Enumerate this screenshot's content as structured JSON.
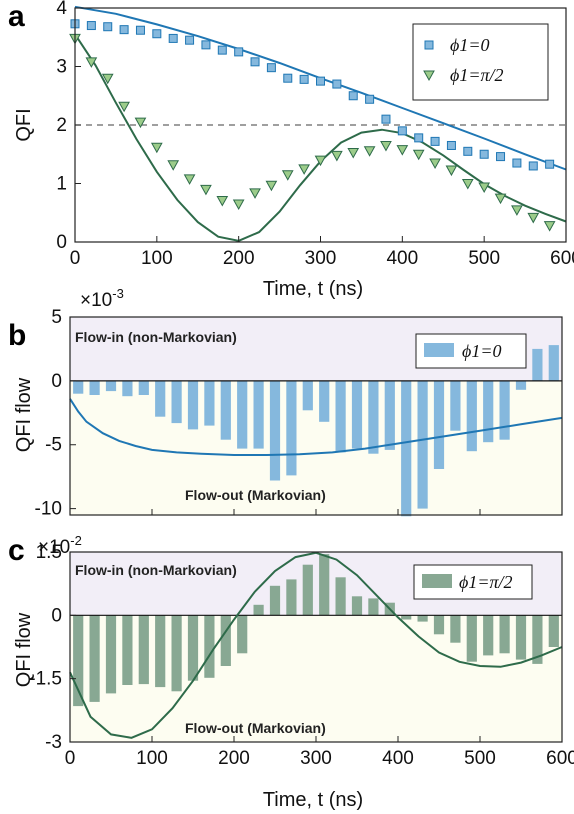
{
  "panels": [
    {
      "label": "a"
    },
    {
      "label": "b",
      "exponent_base": "×10",
      "exponent_power": "-3",
      "flow_in": "Flow-in (non-Markovian)",
      "flow_out": "Flow-out (Markovian)"
    },
    {
      "label": "c",
      "exponent_base": "×10",
      "exponent_power": "-2",
      "flow_in": "Flow-in (non-Markovian)",
      "flow_out": "Flow-out (Markovian)"
    }
  ],
  "colors": {
    "blue": "#1f77b4",
    "blue_fill": "#85b8dd",
    "green": "#2e6b4a",
    "green_fill": "#88a893",
    "green_marker": "#9ccc8a",
    "purple_bg": "#f2eef7",
    "yellow_bg": "#fdfdf1"
  },
  "chart_data": [
    {
      "type": "scatter",
      "title": "",
      "xlabel": "Time, t (ns)",
      "ylabel": "QFI",
      "xlim": [
        0,
        600
      ],
      "ylim": [
        0,
        4
      ],
      "xticks": [
        "0",
        "100",
        "200",
        "300",
        "400",
        "500",
        "600"
      ],
      "yticks": [
        "0",
        "1",
        "2",
        "3",
        "4"
      ],
      "reference_line": 2,
      "legend_position": "top-right",
      "series": [
        {
          "name": "ϕ1=0",
          "marker": "square",
          "x": [
            0,
            20,
            40,
            60,
            80,
            100,
            120,
            140,
            160,
            180,
            200,
            220,
            240,
            260,
            280,
            300,
            320,
            340,
            360,
            380,
            400,
            420,
            440,
            460,
            480,
            500,
            520,
            540,
            560,
            580
          ],
          "y": [
            3.73,
            3.7,
            3.68,
            3.63,
            3.62,
            3.56,
            3.48,
            3.45,
            3.37,
            3.28,
            3.25,
            3.08,
            2.98,
            2.8,
            2.78,
            2.75,
            2.7,
            2.5,
            2.44,
            2.1,
            1.9,
            1.78,
            1.72,
            1.65,
            1.55,
            1.5,
            1.46,
            1.35,
            1.3,
            1.33
          ]
        },
        {
          "name": "ϕ1=π/2",
          "marker": "triangle-down",
          "x": [
            0,
            20,
            40,
            60,
            80,
            100,
            120,
            140,
            160,
            180,
            200,
            220,
            240,
            260,
            280,
            300,
            320,
            340,
            360,
            380,
            400,
            420,
            440,
            460,
            480,
            500,
            520,
            540,
            560,
            580
          ],
          "y": [
            3.48,
            3.08,
            2.8,
            2.32,
            2.05,
            1.62,
            1.32,
            1.08,
            0.9,
            0.71,
            0.65,
            0.84,
            0.97,
            1.15,
            1.25,
            1.4,
            1.48,
            1.53,
            1.56,
            1.65,
            1.58,
            1.5,
            1.35,
            1.23,
            1.0,
            0.94,
            0.75,
            0.55,
            0.42,
            0.28
          ]
        },
        {
          "name": "fit ϕ1=0",
          "type": "line",
          "x": [
            0,
            50,
            100,
            150,
            200,
            250,
            300,
            350,
            400,
            450,
            500,
            550,
            600
          ],
          "y": [
            4.02,
            3.9,
            3.72,
            3.52,
            3.3,
            3.06,
            2.8,
            2.55,
            2.29,
            2.03,
            1.77,
            1.5,
            1.24
          ]
        },
        {
          "name": "fit ϕ1=π/2",
          "type": "line",
          "x": [
            0,
            25,
            50,
            75,
            100,
            125,
            150,
            175,
            200,
            225,
            250,
            275,
            300,
            325,
            350,
            375,
            400,
            425,
            450,
            475,
            500,
            525,
            550,
            575,
            600
          ],
          "y": [
            3.55,
            3.02,
            2.38,
            1.76,
            1.2,
            0.72,
            0.34,
            0.09,
            0.02,
            0.17,
            0.52,
            0.97,
            1.38,
            1.7,
            1.87,
            1.92,
            1.86,
            1.7,
            1.48,
            1.23,
            0.99,
            0.79,
            0.62,
            0.48,
            0.35
          ]
        }
      ]
    },
    {
      "type": "bar",
      "title": "",
      "ylabel": "QFI flow",
      "xlim": [
        0,
        600
      ],
      "ylim": [
        -10.5,
        5
      ],
      "yticks": [
        "-10",
        "-5",
        "0",
        "5"
      ],
      "legend_position": "top-right",
      "series": [
        {
          "name": "ϕ1=0",
          "x": [
            10,
            30,
            50,
            70,
            90,
            110,
            130,
            150,
            170,
            190,
            210,
            230,
            250,
            270,
            290,
            310,
            330,
            350,
            370,
            390,
            410,
            430,
            450,
            470,
            490,
            510,
            530,
            550,
            570,
            590
          ],
          "values": [
            -1.0,
            -1.1,
            -0.8,
            -1.2,
            -1.1,
            -2.8,
            -3.3,
            -3.8,
            -3.5,
            -4.6,
            -5.3,
            -5.3,
            -7.8,
            -7.4,
            -2.3,
            -3.2,
            -5.6,
            -5.3,
            -5.7,
            -5.4,
            -10.6,
            -10.0,
            -6.9,
            -3.9,
            -5.5,
            -4.8,
            -4.6,
            -0.7,
            2.5,
            2.8
          ]
        },
        {
          "name": "fit",
          "type": "line",
          "x": [
            0,
            10,
            20,
            40,
            60,
            80,
            100,
            130,
            160,
            200,
            240,
            280,
            320,
            360,
            400,
            450,
            500,
            550,
            600
          ],
          "y": [
            -1.4,
            -2.4,
            -3.2,
            -4.1,
            -4.7,
            -5.1,
            -5.4,
            -5.6,
            -5.7,
            -5.8,
            -5.8,
            -5.75,
            -5.6,
            -5.3,
            -4.9,
            -4.4,
            -3.9,
            -3.4,
            -2.9
          ]
        }
      ]
    },
    {
      "type": "bar",
      "title": "",
      "xlabel": "Time, t (ns)",
      "ylabel": "QFI flow",
      "xlim": [
        0,
        600
      ],
      "ylim": [
        -3,
        1.5
      ],
      "xticks": [
        "0",
        "100",
        "200",
        "300",
        "400",
        "500",
        "600"
      ],
      "yticks": [
        "-3",
        "-1.5",
        "0",
        "1.5"
      ],
      "legend_position": "top-right",
      "series": [
        {
          "name": "ϕ1=π/2",
          "x": [
            10,
            30,
            50,
            70,
            90,
            110,
            130,
            150,
            170,
            190,
            210,
            230,
            250,
            270,
            290,
            310,
            330,
            350,
            370,
            390,
            410,
            430,
            450,
            470,
            490,
            510,
            530,
            550,
            570,
            590
          ],
          "values": [
            -2.15,
            -2.05,
            -1.85,
            -1.65,
            -1.63,
            -1.7,
            -1.8,
            -1.55,
            -1.48,
            -1.2,
            -0.9,
            0.25,
            0.7,
            0.85,
            1.2,
            1.45,
            0.9,
            0.45,
            0.4,
            0.3,
            -0.1,
            -0.15,
            -0.45,
            -0.65,
            -1.1,
            -0.95,
            -0.9,
            -1.05,
            -1.15,
            -0.75
          ]
        },
        {
          "name": "fit",
          "type": "line",
          "x": [
            0,
            25,
            50,
            75,
            100,
            125,
            150,
            175,
            200,
            225,
            250,
            275,
            300,
            325,
            350,
            375,
            400,
            425,
            450,
            475,
            500,
            525,
            550,
            575,
            600
          ],
          "y": [
            -1.35,
            -2.4,
            -2.82,
            -2.9,
            -2.7,
            -2.2,
            -1.55,
            -0.8,
            -0.1,
            0.55,
            1.05,
            1.38,
            1.48,
            1.32,
            0.95,
            0.45,
            -0.05,
            -0.5,
            -0.88,
            -1.1,
            -1.2,
            -1.22,
            -1.12,
            -0.95,
            -0.75
          ]
        }
      ]
    }
  ]
}
